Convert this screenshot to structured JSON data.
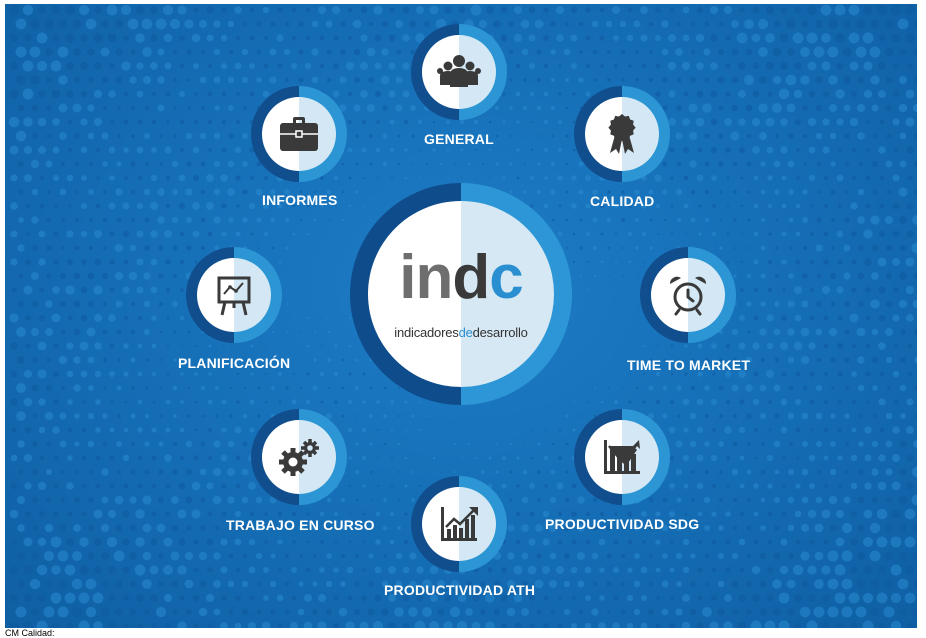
{
  "center": {
    "logo_part1": "in",
    "logo_part2": "d",
    "logo_part3": "c",
    "tagline_a": "indicadores",
    "tagline_b": "de",
    "tagline_c": "desarrollo"
  },
  "nodes": [
    {
      "id": "general",
      "label": "GENERAL",
      "icon": "people-icon"
    },
    {
      "id": "calidad",
      "label": "CALIDAD",
      "icon": "award-ribbon-icon"
    },
    {
      "id": "time-to-market",
      "label": "TIME TO MARKET",
      "icon": "alarm-clock-icon"
    },
    {
      "id": "productividad-sdg",
      "label": "PRODUCTIVIDAD SDG",
      "icon": "bar-chart-arrow-icon"
    },
    {
      "id": "productividad-ath",
      "label": "PRODUCTIVIDAD ATH",
      "icon": "line-chart-arrow-icon"
    },
    {
      "id": "trabajo-en-curso",
      "label": "TRABAJO EN CURSO",
      "icon": "gears-icon"
    },
    {
      "id": "planificacion",
      "label": "PLANIFICACIÓN",
      "icon": "presentation-board-icon"
    },
    {
      "id": "informes",
      "label": "INFORMES",
      "icon": "briefcase-icon"
    }
  ],
  "caption": "CM Calidad:",
  "colors": {
    "background": "#1670b8",
    "ring_dark": "#114e8e",
    "ring_light": "#2c95d4",
    "icon": "#3a3a3a",
    "accent": "#2a8fd0"
  }
}
